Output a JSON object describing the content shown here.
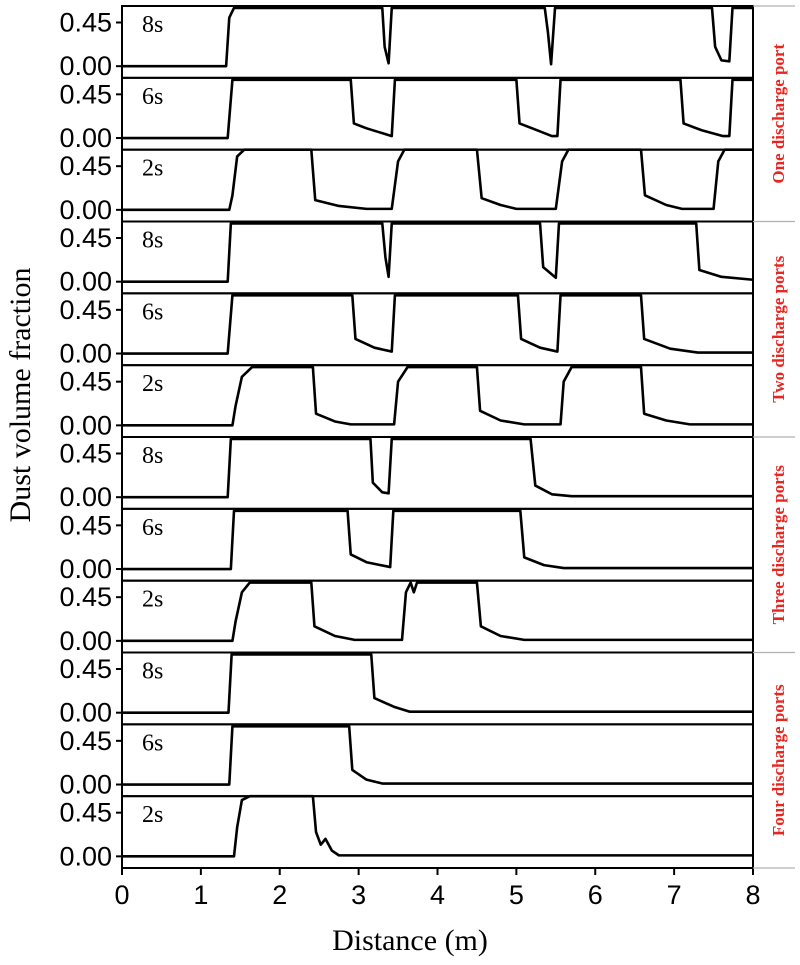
{
  "chart_data": {
    "type": "line",
    "xlabel": "Distance (m)",
    "ylabel": "Dust volume fraction",
    "xlim": [
      0,
      8
    ],
    "ylim": [
      -0.12,
      0.62
    ],
    "x_ticks": [
      "0",
      "1",
      "2",
      "3",
      "4",
      "5",
      "6",
      "7",
      "8"
    ],
    "y_ticks": [
      "0.00",
      "0.45"
    ],
    "colors": {
      "line": "#000000",
      "group_label": "#e8251f",
      "frame": "#000000"
    },
    "groups": [
      {
        "label": "One discharge port",
        "panels": [
          {
            "time": "8s",
            "x": [
              0,
              1.32,
              1.36,
              1.42,
              3.3,
              3.33,
              3.38,
              3.42,
              5.36,
              5.4,
              5.44,
              5.49,
              7.48,
              7.52,
              7.6,
              7.7,
              7.74,
              8.0
            ],
            "y": [
              0,
              0,
              0.5,
              0.6,
              0.6,
              0.2,
              0.03,
              0.6,
              0.6,
              0.35,
              0.02,
              0.6,
              0.6,
              0.2,
              0.06,
              0.05,
              0.6,
              0.6
            ]
          },
          {
            "time": "6s",
            "x": [
              0,
              1.34,
              1.4,
              2.9,
              2.94,
              3.1,
              3.3,
              3.42,
              3.46,
              5.0,
              5.04,
              5.2,
              5.45,
              5.52,
              5.56,
              7.08,
              7.12,
              7.35,
              7.62,
              7.7,
              7.74,
              8.0
            ],
            "y": [
              0,
              0,
              0.6,
              0.6,
              0.15,
              0.1,
              0.05,
              0.02,
              0.6,
              0.6,
              0.15,
              0.1,
              0.02,
              0.02,
              0.6,
              0.6,
              0.15,
              0.08,
              0.02,
              0.02,
              0.6,
              0.6
            ]
          },
          {
            "time": "2s",
            "x": [
              0,
              1.36,
              1.4,
              1.46,
              1.55,
              2.4,
              2.45,
              2.75,
              3.1,
              3.42,
              3.5,
              3.58,
              4.5,
              4.56,
              4.8,
              5.0,
              5.5,
              5.58,
              5.66,
              6.58,
              6.63,
              6.9,
              7.1,
              7.5,
              7.56,
              7.64,
              8.0
            ],
            "y": [
              0,
              0,
              0.15,
              0.55,
              0.62,
              0.62,
              0.1,
              0.04,
              0.01,
              0.01,
              0.5,
              0.62,
              0.62,
              0.12,
              0.05,
              0.01,
              0.01,
              0.5,
              0.62,
              0.62,
              0.15,
              0.05,
              0.01,
              0.01,
              0.5,
              0.62,
              0.62
            ]
          }
        ]
      },
      {
        "label": "Two discharge ports",
        "panels": [
          {
            "time": "8s",
            "x": [
              0,
              1.34,
              1.38,
              3.3,
              3.34,
              3.38,
              3.42,
              5.3,
              5.34,
              5.5,
              5.54,
              7.28,
              7.32,
              7.6,
              8.0
            ],
            "y": [
              0,
              0,
              0.6,
              0.6,
              0.25,
              0.05,
              0.6,
              0.6,
              0.15,
              0.04,
              0.6,
              0.6,
              0.12,
              0.05,
              0.02
            ]
          },
          {
            "time": "6s",
            "x": [
              0,
              1.34,
              1.4,
              2.92,
              2.96,
              3.2,
              3.42,
              3.46,
              5.02,
              5.06,
              5.3,
              5.52,
              5.56,
              6.58,
              6.62,
              6.95,
              7.3,
              8.0
            ],
            "y": [
              0,
              0,
              0.6,
              0.6,
              0.15,
              0.06,
              0.02,
              0.6,
              0.6,
              0.15,
              0.06,
              0.02,
              0.6,
              0.6,
              0.15,
              0.05,
              0.01,
              0.01
            ]
          },
          {
            "time": "2s",
            "x": [
              0,
              1.4,
              1.44,
              1.52,
              1.65,
              2.42,
              2.46,
              2.7,
              2.9,
              3.45,
              3.5,
              3.62,
              4.5,
              4.54,
              4.8,
              5.1,
              5.56,
              5.6,
              5.7,
              6.58,
              6.62,
              6.9,
              7.2,
              8.0
            ],
            "y": [
              0,
              0,
              0.2,
              0.5,
              0.6,
              0.6,
              0.12,
              0.04,
              0.01,
              0.01,
              0.45,
              0.6,
              0.6,
              0.15,
              0.05,
              0.01,
              0.01,
              0.45,
              0.6,
              0.6,
              0.12,
              0.05,
              0.01,
              0.01
            ]
          }
        ]
      },
      {
        "label": "Three discharge ports",
        "panels": [
          {
            "time": "8s",
            "x": [
              0,
              1.34,
              1.38,
              3.15,
              3.18,
              3.3,
              3.38,
              3.42,
              5.18,
              5.24,
              5.45,
              5.7,
              8.0
            ],
            "y": [
              0,
              0,
              0.6,
              0.6,
              0.15,
              0.05,
              0.04,
              0.6,
              0.6,
              0.12,
              0.03,
              0.01,
              0.01
            ]
          },
          {
            "time": "6s",
            "x": [
              0,
              1.38,
              1.42,
              2.86,
              2.9,
              3.1,
              3.4,
              3.44,
              5.05,
              5.1,
              5.35,
              5.6,
              8.0
            ],
            "y": [
              0,
              0,
              0.6,
              0.6,
              0.15,
              0.07,
              0.02,
              0.6,
              0.6,
              0.12,
              0.04,
              0.01,
              0.01
            ]
          },
          {
            "time": "2s",
            "x": [
              0,
              1.4,
              1.44,
              1.52,
              1.62,
              2.4,
              2.44,
              2.7,
              2.95,
              3.55,
              3.6,
              3.66,
              3.7,
              3.74,
              3.78,
              4.5,
              4.55,
              4.8,
              5.1,
              8.0
            ],
            "y": [
              0,
              0,
              0.2,
              0.5,
              0.6,
              0.6,
              0.15,
              0.05,
              0.01,
              0.01,
              0.5,
              0.6,
              0.5,
              0.6,
              0.6,
              0.6,
              0.15,
              0.05,
              0.01,
              0.01
            ]
          }
        ]
      },
      {
        "label": "Four discharge ports",
        "panels": [
          {
            "time": "8s",
            "x": [
              0,
              1.35,
              1.39,
              3.16,
              3.2,
              3.45,
              3.65,
              8.0
            ],
            "y": [
              0,
              0,
              0.6,
              0.6,
              0.15,
              0.06,
              0.01,
              0.01
            ]
          },
          {
            "time": "6s",
            "x": [
              0,
              1.36,
              1.4,
              2.88,
              2.92,
              3.1,
              3.3,
              8.0
            ],
            "y": [
              0,
              0,
              0.6,
              0.6,
              0.15,
              0.05,
              0.01,
              0.01
            ]
          },
          {
            "time": "2s",
            "x": [
              0,
              1.42,
              1.46,
              1.52,
              1.62,
              2.42,
              2.46,
              2.52,
              2.58,
              2.66,
              2.75,
              8.0
            ],
            "y": [
              0,
              0,
              0.3,
              0.58,
              0.62,
              0.62,
              0.25,
              0.12,
              0.18,
              0.06,
              0.01,
              0.01
            ]
          }
        ]
      }
    ]
  }
}
